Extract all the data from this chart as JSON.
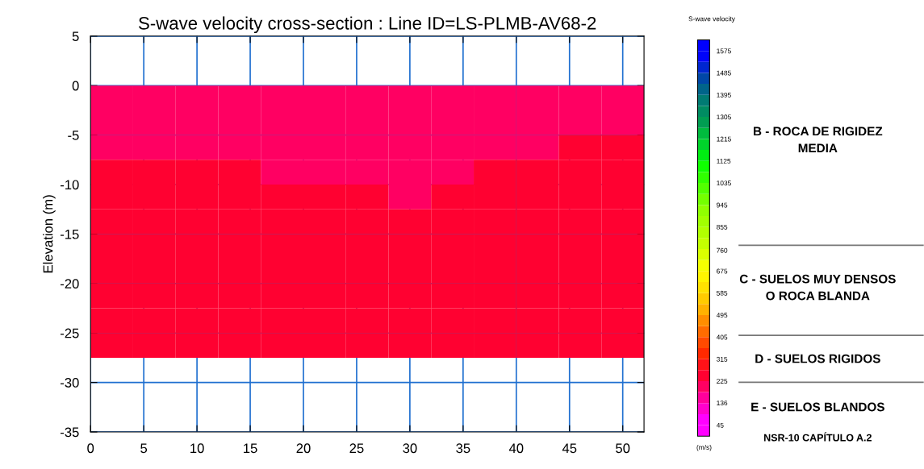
{
  "chart_data": {
    "type": "heatmap",
    "title": "S-wave velocity cross-section : Line ID=LS-PLMB-AV68-2",
    "ylabel": "Elevation (m)",
    "clabel": "S-wave velocity",
    "x": [
      2,
      6,
      10,
      14,
      18,
      22,
      26,
      30,
      34,
      38,
      42,
      46,
      50
    ],
    "y": [
      -1.25,
      -3.75,
      -6.25,
      -8.75,
      -11.25,
      -13.75,
      -16.25,
      -18.75,
      -21.25,
      -23.75,
      -26.25
    ],
    "cells": [
      [
        180,
        180,
        180,
        180,
        180,
        180,
        180,
        180,
        180,
        180,
        180,
        180,
        180
      ],
      [
        180,
        180,
        180,
        180,
        180,
        180,
        180,
        180,
        180,
        180,
        180,
        180,
        180
      ],
      [
        180,
        180,
        180,
        180,
        180,
        180,
        180,
        180,
        180,
        180,
        180,
        240,
        240
      ],
      [
        240,
        240,
        240,
        240,
        180,
        180,
        180,
        180,
        180,
        240,
        240,
        240,
        240
      ],
      [
        240,
        240,
        240,
        240,
        240,
        240,
        240,
        180,
        240,
        240,
        240,
        240,
        240
      ],
      [
        240,
        240,
        240,
        240,
        240,
        240,
        240,
        240,
        240,
        240,
        240,
        240,
        240
      ],
      [
        240,
        240,
        240,
        240,
        240,
        240,
        240,
        240,
        240,
        240,
        240,
        240,
        240
      ],
      [
        240,
        240,
        240,
        240,
        240,
        240,
        240,
        240,
        240,
        240,
        240,
        240,
        240
      ],
      [
        240,
        240,
        240,
        240,
        240,
        240,
        240,
        240,
        240,
        240,
        240,
        240,
        240
      ],
      [
        240,
        240,
        240,
        240,
        240,
        240,
        240,
        240,
        240,
        240,
        240,
        240,
        240
      ],
      [
        240,
        240,
        240,
        240,
        240,
        240,
        240,
        240,
        240,
        240,
        240,
        240,
        240
      ]
    ],
    "clim": [
      0,
      1620
    ],
    "cticks": [
      45,
      136,
      225,
      315,
      405,
      495,
      585,
      675,
      760,
      855,
      945,
      1035,
      1125,
      1215,
      1305,
      1395,
      1485,
      1575
    ],
    "colors": [
      "#ff00ff",
      "#ff0099",
      "#ff0033",
      "#ff2200",
      "#ff6600",
      "#ffaa00",
      "#ffdd00",
      "#ffff00",
      "#ccff00",
      "#aaff00",
      "#88ff00",
      "#44ff00",
      "#00ff00",
      "#00cc33",
      "#009955",
      "#007777",
      "#0044aa",
      "#0000ff"
    ],
    "xlim": [
      0,
      52
    ],
    "xticks": [
      0,
      5,
      10,
      15,
      20,
      25,
      30,
      35,
      40,
      45,
      50
    ],
    "ylim": [
      -35,
      5
    ],
    "yticks": [
      -35,
      -30,
      -25,
      -20,
      -15,
      -10,
      -5,
      0,
      5
    ],
    "grid": true,
    "annotations": [
      "B - ROCA DE RIGIDEZ\nMEDIA",
      "C - SUELOS MUY DENSOS\nO ROCA BLANDA",
      "D - SUELOS RIGIDOS",
      "E - SUELOS BLANDOS",
      "(m/s)",
      "NSR-10 CAPÍTULO A.2"
    ]
  }
}
